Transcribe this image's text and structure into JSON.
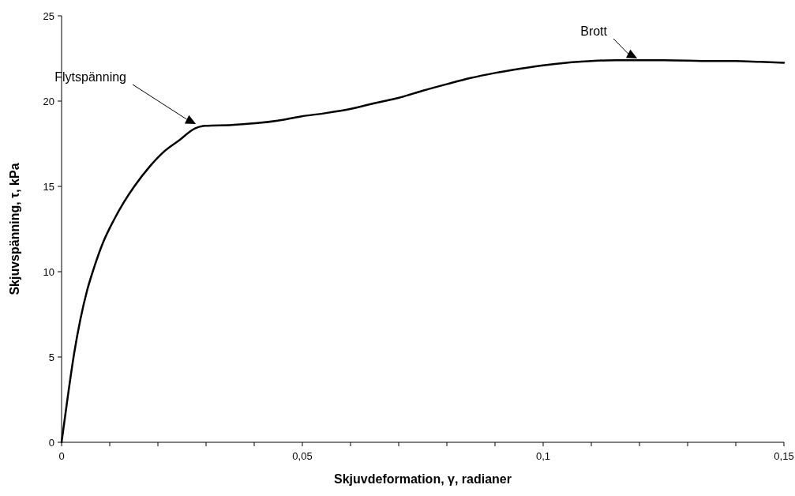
{
  "chart_data": {
    "type": "line",
    "xlabel": "Skjuvdeformation, γ, radianer",
    "ylabel": "Skjuvspänning, τ, kPa",
    "xlim": [
      0,
      0.15
    ],
    "ylim": [
      0,
      25
    ],
    "xticks": [
      {
        "value": 0,
        "label": "0"
      },
      {
        "value": 0.01,
        "label": null
      },
      {
        "value": 0.02,
        "label": null
      },
      {
        "value": 0.03,
        "label": null
      },
      {
        "value": 0.04,
        "label": null
      },
      {
        "value": 0.05,
        "label": "0,05"
      },
      {
        "value": 0.06,
        "label": null
      },
      {
        "value": 0.07,
        "label": null
      },
      {
        "value": 0.08,
        "label": null
      },
      {
        "value": 0.09,
        "label": null
      },
      {
        "value": 0.1,
        "label": "0,1"
      },
      {
        "value": 0.11,
        "label": null
      },
      {
        "value": 0.12,
        "label": null
      },
      {
        "value": 0.13,
        "label": null
      },
      {
        "value": 0.14,
        "label": null
      },
      {
        "value": 0.15,
        "label": "0,15"
      }
    ],
    "yticks": [
      0,
      5,
      10,
      15,
      20,
      25
    ],
    "grid": false,
    "marker": "none",
    "line_style": "solid",
    "series": [
      {
        "color": "#000000",
        "x": [
          0,
          0.0012,
          0.0026,
          0.0039,
          0.0053,
          0.0067,
          0.0086,
          0.0108,
          0.013,
          0.0151,
          0.0184,
          0.0211,
          0.0244,
          0.0277,
          0.0299,
          0.0353,
          0.0449,
          0.0497,
          0.0549,
          0.0601,
          0.0653,
          0.0701,
          0.0749,
          0.0801,
          0.0849,
          0.09,
          0.0952,
          0.1,
          0.1048,
          0.11,
          0.1152,
          0.12,
          0.1251,
          0.1351,
          0.1399,
          0.1451,
          0.15
        ],
        "values": [
          0,
          2.5,
          5.2,
          7.2,
          8.9,
          10.2,
          11.7,
          13.0,
          14.1,
          15.0,
          16.2,
          17.0,
          17.7,
          18.4,
          18.55,
          18.6,
          18.85,
          19.1,
          19.3,
          19.55,
          19.9,
          20.2,
          20.6,
          21.0,
          21.35,
          21.65,
          21.9,
          22.1,
          22.25,
          22.35,
          22.4,
          22.4,
          22.4,
          22.35,
          22.35,
          22.3,
          22.25
        ]
      }
    ],
    "annotations": [
      "Flytspänning",
      "Brott"
    ]
  }
}
